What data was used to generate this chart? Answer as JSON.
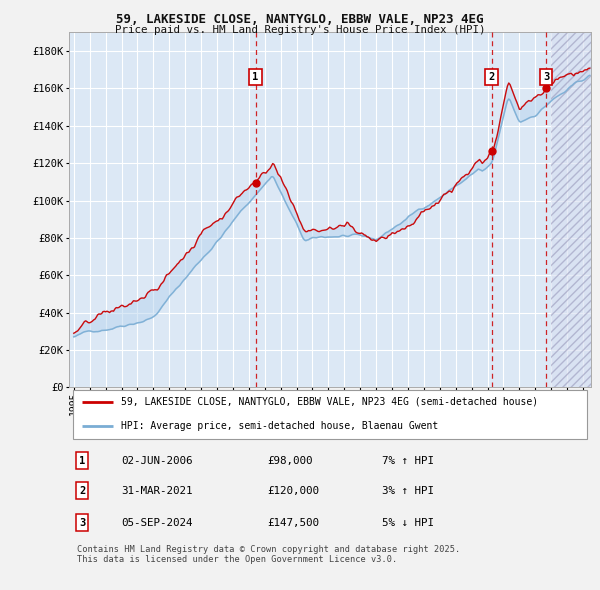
{
  "title": "59, LAKESIDE CLOSE, NANTYGLO, EBBW VALE, NP23 4EG",
  "subtitle": "Price paid vs. HM Land Registry's House Price Index (HPI)",
  "ylabel_ticks": [
    "£0",
    "£20K",
    "£40K",
    "£60K",
    "£80K",
    "£100K",
    "£120K",
    "£140K",
    "£160K",
    "£180K"
  ],
  "ytick_values": [
    0,
    20000,
    40000,
    60000,
    80000,
    100000,
    120000,
    140000,
    160000,
    180000
  ],
  "ylim_min": 0,
  "ylim_max": 190000,
  "xlim_start": 1994.7,
  "xlim_end": 2027.5,
  "xtick_years": [
    1995,
    1996,
    1997,
    1998,
    1999,
    2000,
    2001,
    2002,
    2003,
    2004,
    2005,
    2006,
    2007,
    2008,
    2009,
    2010,
    2011,
    2012,
    2013,
    2014,
    2015,
    2016,
    2017,
    2018,
    2019,
    2020,
    2021,
    2022,
    2023,
    2024,
    2025,
    2026,
    2027
  ],
  "transactions": [
    {
      "num": 1,
      "date": "02-JUN-2006",
      "price": 98000,
      "year": 2006.42,
      "pct": "7%",
      "dir": "↑"
    },
    {
      "num": 2,
      "date": "31-MAR-2021",
      "price": 120000,
      "year": 2021.25,
      "pct": "3%",
      "dir": "↑"
    },
    {
      "num": 3,
      "date": "05-SEP-2024",
      "price": 147500,
      "year": 2024.67,
      "pct": "5%",
      "dir": "↓"
    }
  ],
  "legend_line1": "59, LAKESIDE CLOSE, NANTYGLO, EBBW VALE, NP23 4EG (semi-detached house)",
  "legend_line2": "HPI: Average price, semi-detached house, Blaenau Gwent",
  "copyright": "Contains HM Land Registry data © Crown copyright and database right 2025.\nThis data is licensed under the Open Government Licence v3.0.",
  "line_color_red": "#cc0000",
  "line_color_blue": "#7aadd4",
  "plot_bg": "#dce8f5",
  "grid_color": "#ffffff",
  "hatch_future_start": 2025.0
}
